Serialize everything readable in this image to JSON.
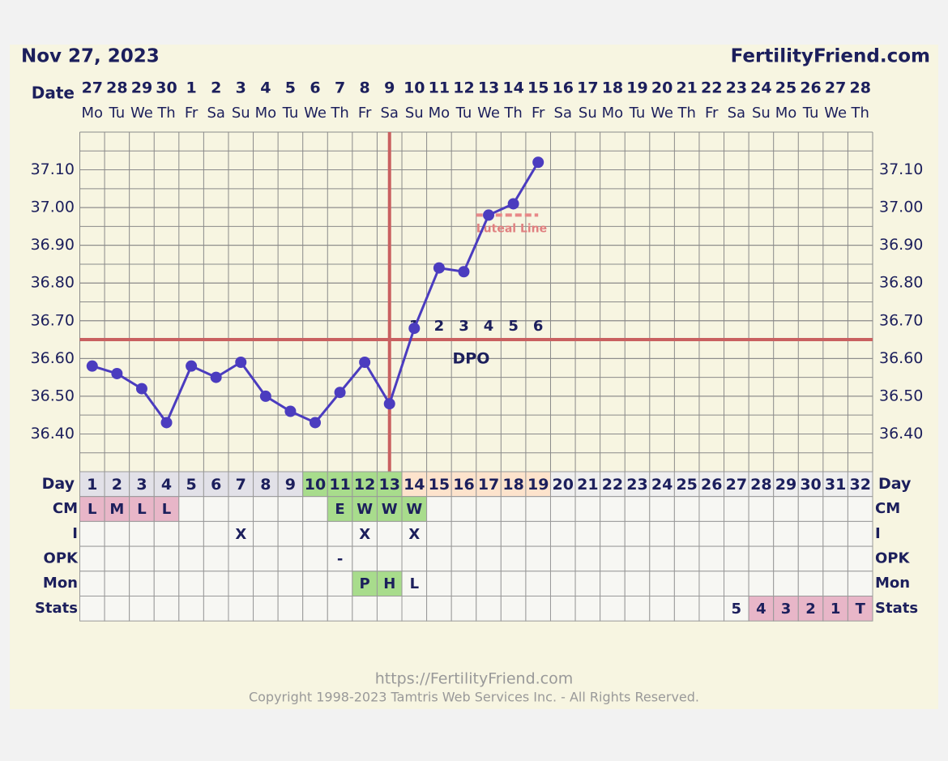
{
  "chart_data": {
    "type": "line",
    "title": "Nov 27, 2023",
    "site": "FertilityFriend.com",
    "date_label": "Date",
    "dates": [
      27,
      28,
      29,
      30,
      1,
      2,
      3,
      4,
      5,
      6,
      7,
      8,
      9,
      10,
      11,
      12,
      13,
      14,
      15,
      16,
      17,
      18,
      19,
      20,
      21,
      22,
      23,
      24,
      25,
      26,
      27,
      28
    ],
    "weekdays": [
      "Mo",
      "Tu",
      "We",
      "Th",
      "Fr",
      "Sa",
      "Su",
      "Mo",
      "Tu",
      "We",
      "Th",
      "Fr",
      "Sa",
      "Su",
      "Mo",
      "Tu",
      "We",
      "Th",
      "Fr",
      "Sa",
      "Su",
      "Mo",
      "Tu",
      "We",
      "Th",
      "Fr",
      "Sa",
      "Su",
      "Mo",
      "Tu",
      "We",
      "Th"
    ],
    "cycle_days": [
      1,
      2,
      3,
      4,
      5,
      6,
      7,
      8,
      9,
      10,
      11,
      12,
      13,
      14,
      15,
      16,
      17,
      18,
      19,
      20,
      21,
      22,
      23,
      24,
      25,
      26,
      27,
      28,
      29,
      30,
      31,
      32
    ],
    "values": [
      36.58,
      36.56,
      36.52,
      36.43,
      36.58,
      36.55,
      36.59,
      36.5,
      36.46,
      36.43,
      36.51,
      36.59,
      36.48,
      36.68,
      36.84,
      36.83,
      36.98,
      37.01,
      37.12,
      null,
      null,
      null,
      null,
      null,
      null,
      null,
      null,
      null,
      null,
      null,
      null,
      null
    ],
    "color": "#4b3cbf",
    "ylim": [
      36.3,
      37.2
    ],
    "yticks": [
      {
        "value": 36.4,
        "label": "36.40"
      },
      {
        "value": 36.5,
        "label": "36.50"
      },
      {
        "value": 36.6,
        "label": "36.60"
      },
      {
        "value": 36.7,
        "label": "36.70"
      },
      {
        "value": 36.8,
        "label": "36.80"
      },
      {
        "value": 36.9,
        "label": "36.90"
      },
      {
        "value": 37.0,
        "label": "37.00"
      },
      {
        "value": 37.1,
        "label": "37.10"
      }
    ],
    "grid": true,
    "coverline": 36.65,
    "ovulation_day": 13,
    "luteal_line": {
      "value": 36.98,
      "label": "Luteal Line",
      "days": [
        17,
        19
      ]
    },
    "dpo_label": "DPO",
    "dpo": [
      null,
      null,
      null,
      null,
      null,
      null,
      null,
      null,
      null,
      null,
      null,
      null,
      null,
      1,
      2,
      3,
      4,
      5,
      6,
      null,
      null,
      null,
      null,
      null,
      null,
      null,
      null,
      null,
      null,
      null,
      null,
      null
    ],
    "day_label": "Day",
    "day_colors": [
      "#e2e1e8",
      "#e2e1e8",
      "#e2e1e8",
      "#e2e1e8",
      "#e2e1e8",
      "#e2e1e8",
      "#e2e1e8",
      "#e2e1e8",
      "#e2e1e8",
      "#a8dc8c",
      "#a8dc8c",
      "#a8dc8c",
      "#a8dc8c",
      "#fde3cc",
      "#fde3cc",
      "#fde3cc",
      "#fde3cc",
      "#fde3cc",
      "#fde3cc",
      "#efefef",
      "#efefef",
      "#efefef",
      "#efefef",
      "#efefef",
      "#efefef",
      "#efefef",
      "#efefef",
      "#efefef",
      "#efefef",
      "#efefef",
      "#efefef",
      "#efefef"
    ],
    "rows": [
      {
        "label": "CM",
        "cells": [
          "L",
          "M",
          "L",
          "L",
          null,
          null,
          null,
          null,
          null,
          null,
          "E",
          "W",
          "W",
          "W",
          null,
          null,
          null,
          null,
          null,
          null,
          null,
          null,
          null,
          null,
          null,
          null,
          null,
          null,
          null,
          null,
          null,
          null
        ],
        "colors": [
          "#e8b6c8",
          "#e8b6c8",
          "#e8b6c8",
          "#e8b6c8",
          null,
          null,
          null,
          null,
          null,
          null,
          "#a8dc8c",
          "#a8dc8c",
          "#a8dc8c",
          "#a8dc8c",
          null,
          null,
          null,
          null,
          null,
          null,
          null,
          null,
          null,
          null,
          null,
          null,
          null,
          null,
          null,
          null,
          null,
          null
        ]
      },
      {
        "label": "I",
        "cells": [
          null,
          null,
          null,
          null,
          null,
          null,
          "X",
          null,
          null,
          null,
          null,
          "X",
          null,
          "X",
          null,
          null,
          null,
          null,
          null,
          null,
          null,
          null,
          null,
          null,
          null,
          null,
          null,
          null,
          null,
          null,
          null,
          null
        ]
      },
      {
        "label": "OPK",
        "cells": [
          null,
          null,
          null,
          null,
          null,
          null,
          null,
          null,
          null,
          null,
          "-",
          null,
          null,
          null,
          null,
          null,
          null,
          null,
          null,
          null,
          null,
          null,
          null,
          null,
          null,
          null,
          null,
          null,
          null,
          null,
          null,
          null
        ]
      },
      {
        "label": "Mon",
        "cells": [
          null,
          null,
          null,
          null,
          null,
          null,
          null,
          null,
          null,
          null,
          null,
          "P",
          "H",
          "L",
          null,
          null,
          null,
          null,
          null,
          null,
          null,
          null,
          null,
          null,
          null,
          null,
          null,
          null,
          null,
          null,
          null,
          null
        ],
        "colors": [
          null,
          null,
          null,
          null,
          null,
          null,
          null,
          null,
          null,
          null,
          null,
          "#a8dc8c",
          "#a8dc8c",
          null,
          null,
          null,
          null,
          null,
          null,
          null,
          null,
          null,
          null,
          null,
          null,
          null,
          null,
          null,
          null,
          null,
          null,
          null
        ]
      },
      {
        "label": "Stats",
        "cells": [
          null,
          null,
          null,
          null,
          null,
          null,
          null,
          null,
          null,
          null,
          null,
          null,
          null,
          null,
          null,
          null,
          null,
          null,
          null,
          null,
          null,
          null,
          null,
          null,
          null,
          null,
          "5",
          "4",
          "3",
          "2",
          "1",
          "T"
        ],
        "colors": [
          null,
          null,
          null,
          null,
          null,
          null,
          null,
          null,
          null,
          null,
          null,
          null,
          null,
          null,
          null,
          null,
          null,
          null,
          null,
          null,
          null,
          null,
          null,
          null,
          null,
          null,
          null,
          "#e8b6c8",
          "#e8b6c8",
          "#e8b6c8",
          "#e8b6c8",
          "#e8b6c8"
        ]
      }
    ]
  },
  "footer": {
    "url": "https://FertilityFriend.com",
    "copyright": "Copyright 1998-2023 Tamtris Web Services Inc. - All Rights Reserved."
  }
}
